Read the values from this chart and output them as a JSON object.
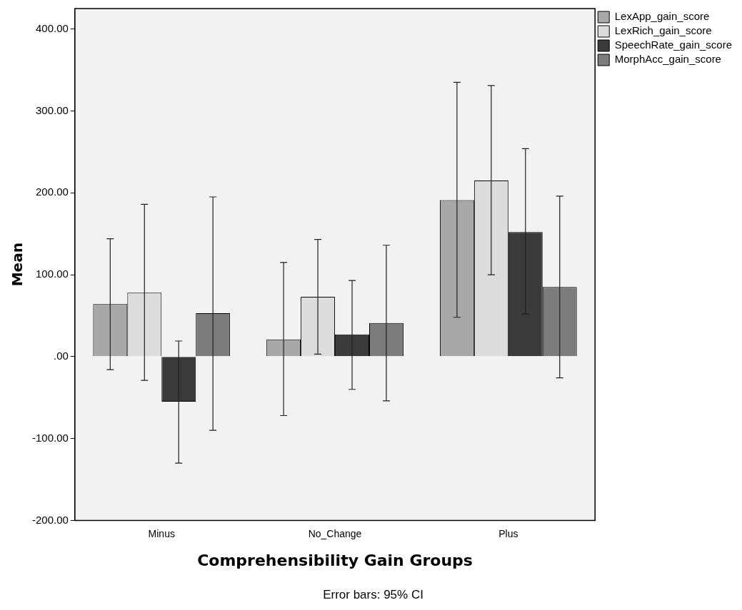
{
  "chart_data": {
    "type": "bar",
    "xlabel": "Comprehensibility Gain Groups",
    "ylabel": "Mean",
    "categories": [
      "Minus",
      "No_Change",
      "Plus"
    ],
    "series": [
      {
        "name": "LexApp_gain_score",
        "color": "#a8a8a8",
        "values": [
          64,
          21,
          191
        ],
        "errors": [
          [
            -16,
            144
          ],
          [
            -72,
            115
          ],
          [
            48,
            335
          ]
        ]
      },
      {
        "name": "LexRich_gain_score",
        "color": "#dcdcdc",
        "values": [
          78,
          73,
          215
        ],
        "errors": [
          [
            -29,
            186
          ],
          [
            3,
            143
          ],
          [
            100,
            331
          ]
        ]
      },
      {
        "name": "SpeechRate_gain_score",
        "color": "#3a3a3a",
        "values": [
          -55,
          27,
          152
        ],
        "errors": [
          [
            -130,
            19
          ],
          [
            -40,
            93
          ],
          [
            52,
            254
          ]
        ]
      },
      {
        "name": "MorphAcc_gain_score",
        "color": "#7c7c7c",
        "values": [
          53,
          41,
          85
        ],
        "errors": [
          [
            -90,
            195
          ],
          [
            -54,
            136
          ],
          [
            -26,
            196
          ]
        ]
      }
    ],
    "ylim": [
      -200,
      425
    ],
    "yticks": [
      {
        "value": -200,
        "label": "-200.00"
      },
      {
        "value": -100,
        "label": "-100.00"
      },
      {
        "value": 0,
        "label": ".00"
      },
      {
        "value": 100,
        "label": "100.00"
      },
      {
        "value": 200,
        "label": "200.00"
      },
      {
        "value": 300,
        "label": "300.00"
      },
      {
        "value": 400,
        "label": "400.00"
      }
    ],
    "grid": false,
    "legend": "top right",
    "annotations": [
      "Error bars: 95% CI"
    ]
  }
}
